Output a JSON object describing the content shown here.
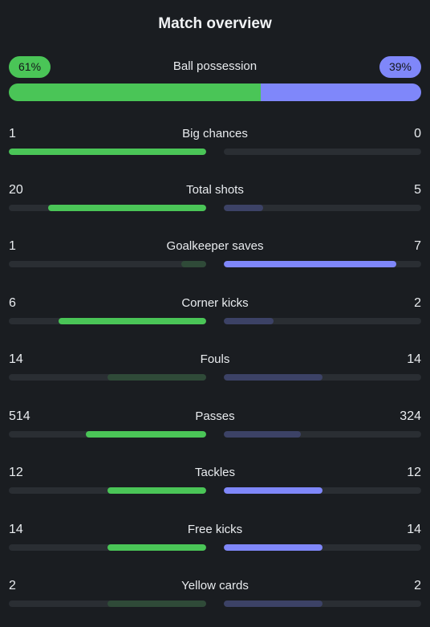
{
  "header": {
    "title": "Match overview"
  },
  "possession": {
    "label": "Ball possession",
    "home_text": "61%",
    "away_text": "39%",
    "home_pct": 61,
    "away_pct": 39
  },
  "colors": {
    "home_strong": "#4ac557",
    "home_weak": "#2f4a38",
    "away_strong": "#7f87fa",
    "away_weak": "#3c4266",
    "track": "#2a2e33",
    "background": "#1a1d21"
  },
  "stats": [
    {
      "label": "Big chances",
      "home": "1",
      "away": "0",
      "home_fill": 1.0,
      "away_fill": 0.0,
      "home_leads": true,
      "away_leads": false
    },
    {
      "label": "Total shots",
      "home": "20",
      "away": "5",
      "home_fill": 0.8,
      "away_fill": 0.2,
      "home_leads": true,
      "away_leads": false
    },
    {
      "label": "Goalkeeper saves",
      "home": "1",
      "away": "7",
      "home_fill": 0.125,
      "away_fill": 0.875,
      "home_leads": false,
      "away_leads": true
    },
    {
      "label": "Corner kicks",
      "home": "6",
      "away": "2",
      "home_fill": 0.75,
      "away_fill": 0.25,
      "home_leads": true,
      "away_leads": false
    },
    {
      "label": "Fouls",
      "home": "14",
      "away": "14",
      "home_fill": 0.5,
      "away_fill": 0.5,
      "home_leads": false,
      "away_leads": false
    },
    {
      "label": "Passes",
      "home": "514",
      "away": "324",
      "home_fill": 0.61,
      "away_fill": 0.39,
      "home_leads": true,
      "away_leads": false
    },
    {
      "label": "Tackles",
      "home": "12",
      "away": "12",
      "home_fill": 0.5,
      "away_fill": 0.5,
      "home_leads": true,
      "away_leads": true
    },
    {
      "label": "Free kicks",
      "home": "14",
      "away": "14",
      "home_fill": 0.5,
      "away_fill": 0.5,
      "home_leads": true,
      "away_leads": true
    },
    {
      "label": "Yellow cards",
      "home": "2",
      "away": "2",
      "home_fill": 0.5,
      "away_fill": 0.5,
      "home_leads": false,
      "away_leads": false
    }
  ]
}
